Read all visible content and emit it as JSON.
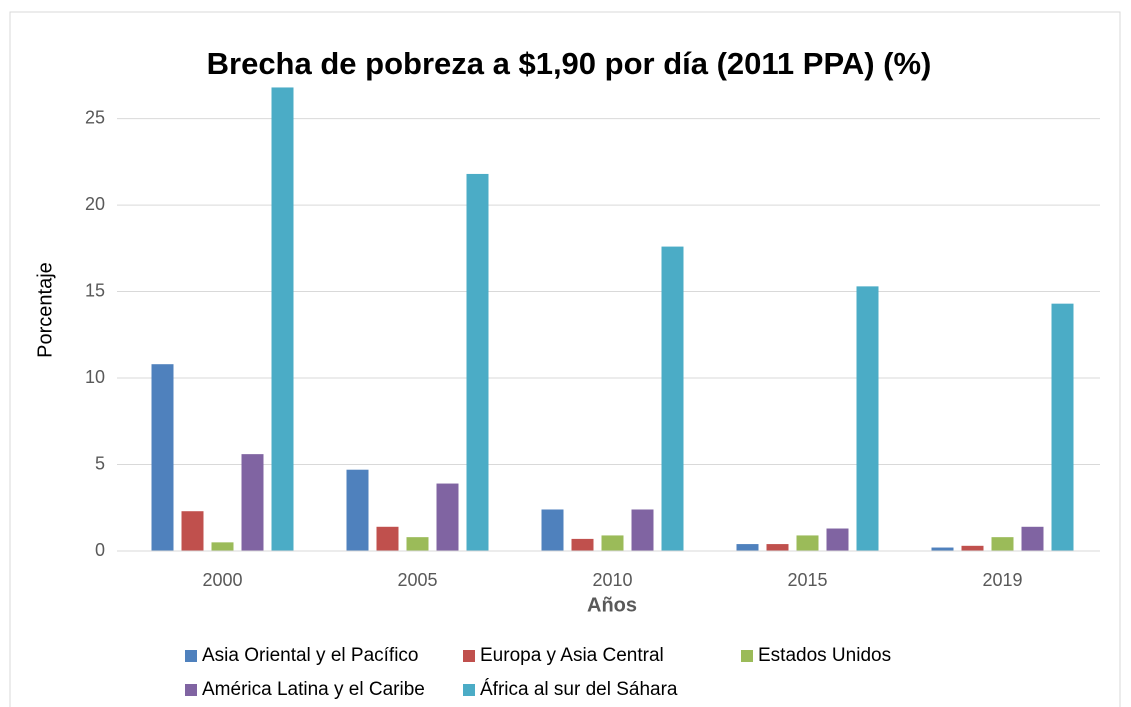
{
  "chart_data": {
    "type": "bar",
    "title": "Brecha de pobreza a $1,90 por día (2011 PPA) (%)",
    "y_label": "Porcentaje",
    "x_label": "Años",
    "categories": [
      "2000",
      "2005",
      "2010",
      "2015",
      "2019"
    ],
    "series": [
      {
        "name": "Asia Oriental y el Pacífico",
        "color": "#4f81bd",
        "values": [
          10.8,
          4.7,
          2.4,
          0.4,
          0.2
        ]
      },
      {
        "name": "Europa y Asia Central",
        "color": "#c0504d",
        "values": [
          2.3,
          1.4,
          0.7,
          0.4,
          0.3
        ]
      },
      {
        "name": "Estados Unidos",
        "color": "#9bbb59",
        "values": [
          0.5,
          0.8,
          0.9,
          0.9,
          0.8
        ]
      },
      {
        "name": "América Latina y el Caribe",
        "color": "#8064a2",
        "values": [
          5.6,
          3.9,
          2.4,
          1.3,
          1.4
        ]
      },
      {
        "name": "África al sur del Sáhara",
        "color": "#4bacc6",
        "values": [
          26.8,
          21.8,
          17.6,
          15.3,
          14.3
        ]
      }
    ],
    "ylim": [
      0,
      27
    ],
    "yticks": [
      0,
      5,
      10,
      15,
      20,
      25
    ],
    "grid": true,
    "legend": "bottom"
  }
}
